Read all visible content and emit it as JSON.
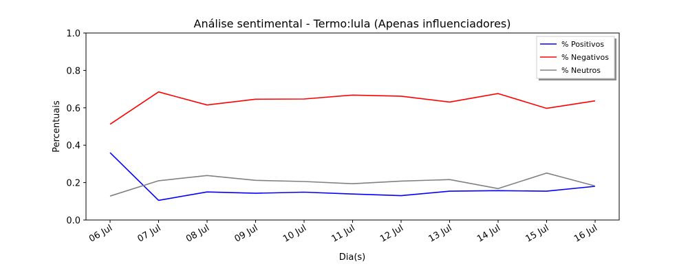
{
  "chart_data": {
    "type": "line",
    "title": "Análise sentimental - Termo:lula (Apenas influenciadores)",
    "xlabel": "Dia(s)",
    "ylabel": "Percentuais",
    "ylim": [
      0,
      1
    ],
    "yticks": [
      "0.0",
      "0.2",
      "0.4",
      "0.6",
      "0.8",
      "1.0"
    ],
    "categories": [
      "06 Jul",
      "07 Jul",
      "08 Jul",
      "09 Jul",
      "10 Jul",
      "11 Jul",
      "12 Jul",
      "13 Jul",
      "14 Jul",
      "15 Jul",
      "16 Jul"
    ],
    "grid": false,
    "legend_position": "top-right",
    "series": [
      {
        "name": "% Positivos",
        "color": "#0000ff",
        "values": [
          0.36,
          0.105,
          0.15,
          0.143,
          0.149,
          0.139,
          0.13,
          0.154,
          0.157,
          0.154,
          0.18
        ]
      },
      {
        "name": "% Negativos",
        "color": "#ff0000",
        "values": [
          0.512,
          0.685,
          0.615,
          0.646,
          0.647,
          0.668,
          0.662,
          0.631,
          0.676,
          0.597,
          0.637
        ]
      },
      {
        "name": "% Neutros",
        "color": "#808080",
        "values": [
          0.128,
          0.21,
          0.238,
          0.212,
          0.206,
          0.194,
          0.208,
          0.216,
          0.168,
          0.251,
          0.182
        ]
      }
    ]
  }
}
